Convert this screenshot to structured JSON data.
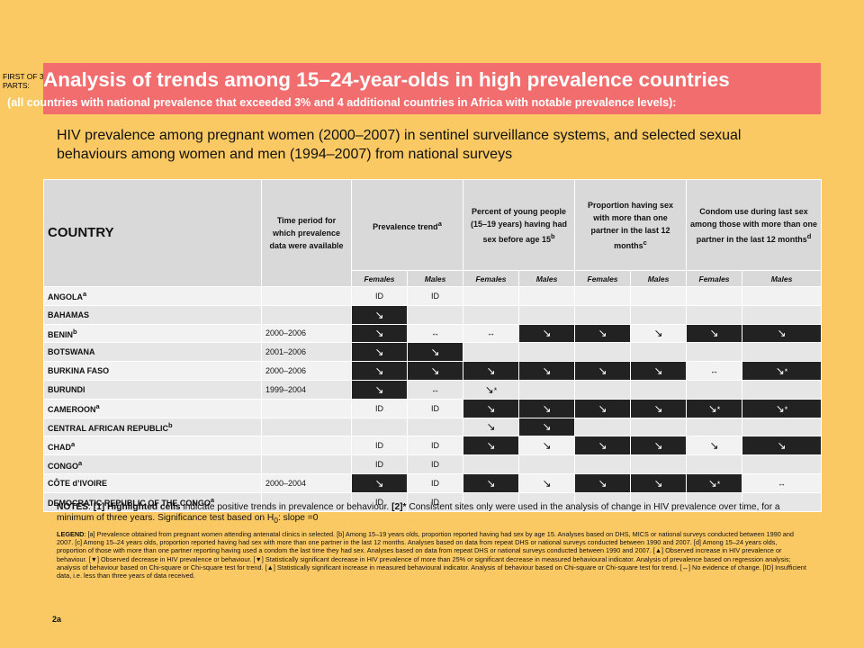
{
  "header": {
    "first_of": "FIRST OF 3 PARTS:",
    "title": "Analysis of trends among 15–24-year-olds in high prevalence countries",
    "subtitle_line": "(all countries with national prevalence that exceeded 3% and 4 additional countries in Africa with notable prevalence levels):"
  },
  "subtitle": "HIV prevalence among pregnant women (2000–2007) in sentinel surveillance systems, and selected sexual behaviours among women and men (1994–2007) from national surveys",
  "table": {
    "col_country": "COUNTRY",
    "col_period": "Time period for which prevalence data were available",
    "col_prevalence": "Prevalence trend",
    "col_prevalence_sup": "a",
    "col_young_sex": "Percent of young people (15–19 years) having had sex before age 15",
    "col_young_sex_sup": "b",
    "col_partners": "Proportion having sex with more than one partner in the last 12 months",
    "col_partners_sup": "c",
    "col_condom": "Condom use during last sex among those with more than one partner in the last 12 months",
    "col_condom_sup": "d",
    "sub_females": "Females",
    "sub_males": "Males",
    "rows": [
      {
        "country": "ANGOLA",
        "sup": "a",
        "period": "",
        "cells": [
          "ID",
          "ID",
          "",
          "",
          "",
          "",
          "",
          ""
        ]
      },
      {
        "country": "BAHAMAS",
        "sup": "",
        "period": "",
        "cells": [
          "",
          "",
          "",
          "",
          "",
          "",
          "",
          ""
        ]
      },
      {
        "country": "BENIN",
        "sup": "b",
        "period": "2000–2006",
        "cells": [
          "",
          "↔",
          "↔",
          "",
          "",
          "",
          "",
          ""
        ]
      },
      {
        "country": "BOTSWANA",
        "sup": "",
        "period": "2001–2006",
        "cells": [
          "",
          "",
          "",
          "",
          "",
          "",
          "",
          ""
        ]
      },
      {
        "country": "BURKINA FASO",
        "sup": "",
        "period": "2000–2006",
        "cells": [
          "",
          "",
          "",
          "",
          "",
          "",
          "↔",
          "*"
        ]
      },
      {
        "country": "BURUNDI",
        "sup": "",
        "period": "1999–2004",
        "cells": [
          "",
          "↔",
          "*",
          "",
          "",
          "",
          "",
          ""
        ]
      },
      {
        "country": "CAMEROON",
        "sup": "a",
        "period": "",
        "cells": [
          "ID",
          "ID",
          "",
          "",
          "",
          "",
          "*",
          "*"
        ]
      },
      {
        "country": "CENTRAL AFRICAN REPUBLIC",
        "sup": "b",
        "period": "",
        "cells": [
          "",
          "",
          "",
          "",
          "",
          "",
          "",
          ""
        ]
      },
      {
        "country": "CHAD",
        "sup": "a",
        "period": "",
        "cells": [
          "ID",
          "ID",
          "",
          "",
          "",
          "",
          "",
          ""
        ]
      },
      {
        "country": "CONGO",
        "sup": "a",
        "period": "",
        "cells": [
          "ID",
          "ID",
          "",
          "",
          "",
          "",
          "",
          ""
        ]
      },
      {
        "country": "CÔTE d’IVOIRE",
        "sup": "",
        "period": "2000–2004",
        "cells": [
          "",
          "ID",
          "",
          "",
          "",
          "",
          "*",
          "↔"
        ]
      },
      {
        "country": "DEMOCRATIC REPUBLIC OF THE CONGO",
        "sup": "a",
        "period": "",
        "cells": [
          "ID",
          "ID",
          "",
          "",
          "",
          "",
          "",
          ""
        ]
      }
    ]
  },
  "notes": {
    "label": "NOTES",
    "n1_label": "[1]",
    "n1_bold": "Highlighted cells",
    "n1_text": "indicate positive trends in prevalence or behaviour.",
    "n2_label": "[2]*",
    "n2_text": "Consistent sites only were used in the analysis of change in HIV prevalence over time, for a minimum of three years. Significance test based on H",
    "n2_sub": "0",
    "n2_end": ": slope =0"
  },
  "legend": {
    "label": "LEGEND",
    "text": "[a] Prevalence obtained from pregnant women attending antenatal clinics in selected. [b] Among 15–19 years olds, proportion reported having had sex by age 15. Analyses based on DHS, MICS or national surveys conducted between 1990 and 2007. [c] Among 15–24 years olds, proportion reported having had sex with more than one partner in the last 12 months. Analyses based on data from repeat DHS or national surveys conducted between 1990 and 2007. [d] Among 15–24 years olds, proportion of those with more than one partner reporting having used a condom the last time they had sex. Analyses based on data from repeat DHS or national surveys conducted between 1990 and 2007. [▲] Observed increase in HIV prevalence or behaviour. [▼] Observed decrease in HIV prevalence or behaviour. [▼] Statistically significant decrease in HIV prevalence of more than 25% or significant decrease in measured behavioural indicator. Analysis of prevalence based on regression analysis; analysis of behaviour based on Chi-square or Chi-square test for trend. [▲] Statistically significant increase in measured behavioural indicator. Analysis of behaviour based on Chi-square or Chi-square test for trend. [↔] No evidence of change. [ID] Insufficient data, i.e. less than three years of data received."
  },
  "page_number": "2a",
  "colors": {
    "background": "#FBC963",
    "title_bar": "#F26E6E",
    "highlight": "#222222",
    "header_cell": "#D9D9D9"
  }
}
